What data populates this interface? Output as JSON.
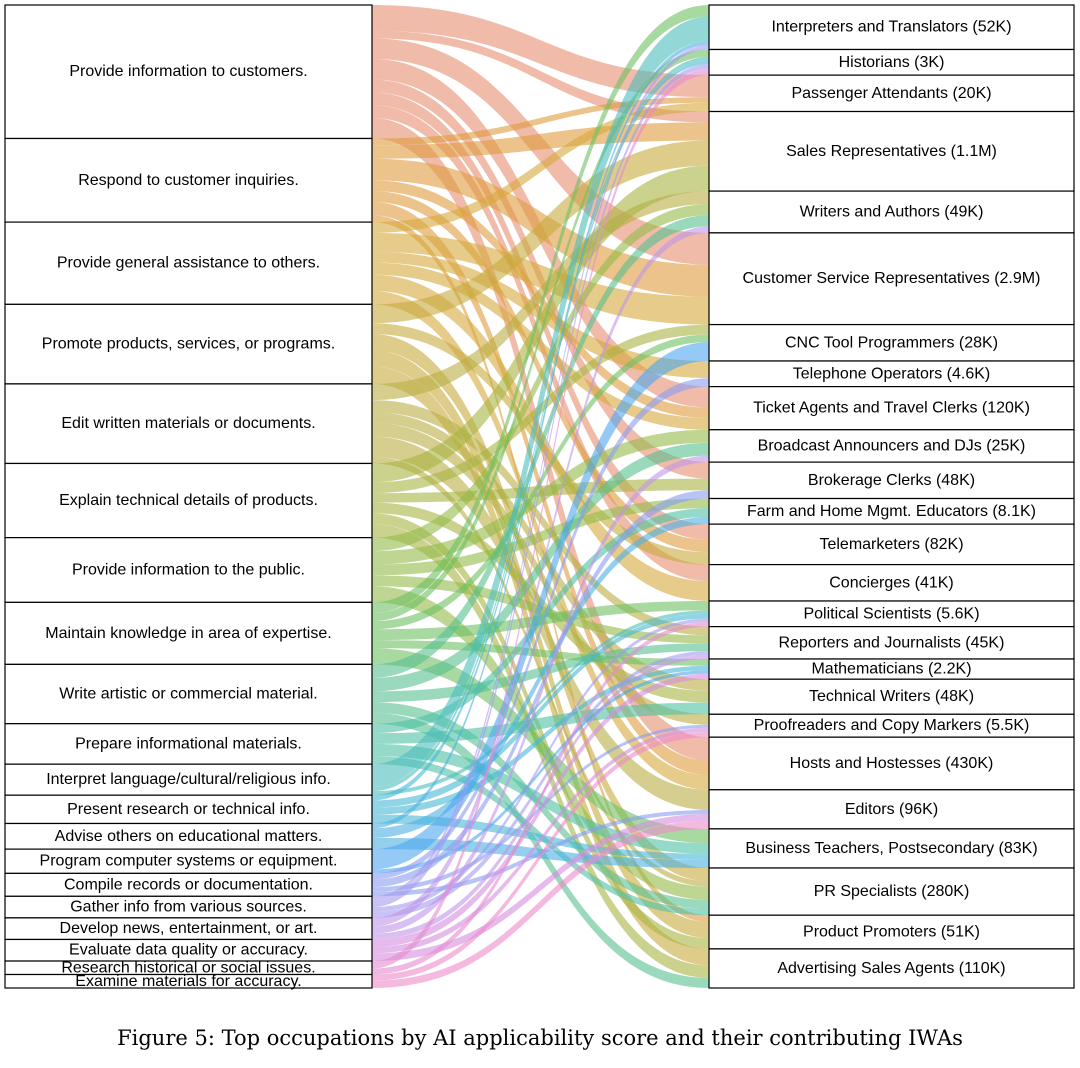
{
  "chart_data": {
    "type": "sankey",
    "caption": "Figure 5: Top occupations by AI applicability score and their contributing IWAs",
    "sources": [
      {
        "label": "Provide information to customers.",
        "color": "#e88e72",
        "weight": 9.9
      },
      {
        "label": "Respond to customer inquiries.",
        "color": "#e09b3c",
        "weight": 6.2
      },
      {
        "label": "Provide general assistance to others.",
        "color": "#d7a83c",
        "weight": 6.1
      },
      {
        "label": "Promote products, services, or programs.",
        "color": "#c8aa3e",
        "weight": 5.9
      },
      {
        "label": "Edit written materials or documents.",
        "color": "#b9ae42",
        "weight": 5.9
      },
      {
        "label": "Explain technical details of products.",
        "color": "#a9b443",
        "weight": 5.5
      },
      {
        "label": "Provide information to the public.",
        "color": "#92bb4a",
        "weight": 4.8
      },
      {
        "label": "Maintain knowledge in area of expertise.",
        "color": "#6dbf63",
        "weight": 4.6
      },
      {
        "label": "Write artistic or commercial material.",
        "color": "#56c08d",
        "weight": 4.4
      },
      {
        "label": "Prepare informational materials.",
        "color": "#4fc0a5",
        "weight": 3.0
      },
      {
        "label": "Interpret language/cultural/religious info.",
        "color": "#4cbcbd",
        "weight": 2.3
      },
      {
        "label": "Present research or technical info.",
        "color": "#48b8d3",
        "weight": 2.1
      },
      {
        "label": "Advise others on educational matters.",
        "color": "#4db0e3",
        "weight": 1.9
      },
      {
        "label": "Program computer systems or equipment.",
        "color": "#4ca6ee",
        "weight": 1.8
      },
      {
        "label": "Compile records or documentation.",
        "color": "#8b9cf0",
        "weight": 1.7
      },
      {
        "label": "Gather info from various sources.",
        "color": "#a59af0",
        "weight": 1.6
      },
      {
        "label": "Develop news, entertainment, or art.",
        "color": "#bf94ea",
        "weight": 1.6
      },
      {
        "label": "Evaluate data quality or accuracy.",
        "color": "#d68ee0",
        "weight": 1.6
      },
      {
        "label": "Research historical or social issues.",
        "color": "#e68ad0",
        "weight": 1.0
      },
      {
        "label": "Examine materials for accuracy.",
        "color": "#ef8acb",
        "weight": 1.0
      }
    ],
    "targets": [
      {
        "label": "Interpreters and Translators (52K)",
        "weight": 3.3
      },
      {
        "label": "Historians (3K)",
        "weight": 1.9
      },
      {
        "label": "Passenger Attendants (20K)",
        "weight": 2.7
      },
      {
        "label": "Sales Representatives (1.1M)",
        "weight": 5.9
      },
      {
        "label": "Writers and Authors (49K)",
        "weight": 3.1
      },
      {
        "label": "Customer Service Representatives (2.9M)",
        "weight": 6.8
      },
      {
        "label": "CNC Tool Programmers (28K)",
        "weight": 2.7
      },
      {
        "label": "Telephone Operators (4.6K)",
        "weight": 1.9
      },
      {
        "label": "Ticket Agents and Travel Clerks (120K)",
        "weight": 3.2
      },
      {
        "label": "Broadcast Announcers and DJs (25K)",
        "weight": 2.4
      },
      {
        "label": "Brokerage Clerks (48K)",
        "weight": 2.7
      },
      {
        "label": "Farm and Home Mgmt. Educators (8.1K)",
        "weight": 1.9
      },
      {
        "label": "Telemarketers (82K)",
        "weight": 3.0
      },
      {
        "label": "Concierges (41K)",
        "weight": 2.7
      },
      {
        "label": "Political Scientists (5.6K)",
        "weight": 1.9
      },
      {
        "label": "Reporters and Journalists (45K)",
        "weight": 2.4
      },
      {
        "label": "Mathematicians (2.2K)",
        "weight": 1.5
      },
      {
        "label": "Technical Writers (48K)",
        "weight": 2.6
      },
      {
        "label": "Proofreaders and Copy Markers (5.5K)",
        "weight": 1.7
      },
      {
        "label": "Hosts and Hostesses (430K)",
        "weight": 3.9
      },
      {
        "label": "Editors (96K)",
        "weight": 2.9
      },
      {
        "label": "Business Teachers, Postsecondary (83K)",
        "weight": 2.9
      },
      {
        "label": "PR Specialists (280K)",
        "weight": 3.5
      },
      {
        "label": "Product Promoters (51K)",
        "weight": 2.5
      },
      {
        "label": "Advertising Sales Agents (110K)",
        "weight": 2.9
      }
    ],
    "links": [
      {
        "source": 0,
        "target": 2,
        "value": 2.0
      },
      {
        "source": 0,
        "target": 5,
        "value": 1.6
      },
      {
        "source": 0,
        "target": 8,
        "value": 1.6
      },
      {
        "source": 0,
        "target": 10,
        "value": 1.0
      },
      {
        "source": 0,
        "target": 12,
        "value": 1.0
      },
      {
        "source": 0,
        "target": 13,
        "value": 1.0
      },
      {
        "source": 0,
        "target": 19,
        "value": 1.6
      },
      {
        "source": 0,
        "target": 3,
        "value": 0.6
      },
      {
        "source": 1,
        "target": 3,
        "value": 1.0
      },
      {
        "source": 1,
        "target": 5,
        "value": 1.6
      },
      {
        "source": 1,
        "target": 8,
        "value": 0.8
      },
      {
        "source": 1,
        "target": 12,
        "value": 0.8
      },
      {
        "source": 1,
        "target": 19,
        "value": 1.0
      },
      {
        "source": 1,
        "target": 23,
        "value": 0.5
      },
      {
        "source": 1,
        "target": 2,
        "value": 0.5
      },
      {
        "source": 2,
        "target": 2,
        "value": 0.8
      },
      {
        "source": 2,
        "target": 5,
        "value": 1.4
      },
      {
        "source": 2,
        "target": 7,
        "value": 0.8
      },
      {
        "source": 2,
        "target": 13,
        "value": 1.2
      },
      {
        "source": 2,
        "target": 19,
        "value": 1.0
      },
      {
        "source": 2,
        "target": 8,
        "value": 0.9
      },
      {
        "source": 3,
        "target": 3,
        "value": 1.4
      },
      {
        "source": 3,
        "target": 12,
        "value": 0.8
      },
      {
        "source": 3,
        "target": 22,
        "value": 1.2
      },
      {
        "source": 3,
        "target": 23,
        "value": 1.2
      },
      {
        "source": 3,
        "target": 24,
        "value": 1.3
      },
      {
        "source": 4,
        "target": 4,
        "value": 1.2
      },
      {
        "source": 4,
        "target": 15,
        "value": 0.9
      },
      {
        "source": 4,
        "target": 17,
        "value": 0.8
      },
      {
        "source": 4,
        "target": 18,
        "value": 1.0
      },
      {
        "source": 4,
        "target": 20,
        "value": 1.5
      },
      {
        "source": 4,
        "target": 22,
        "value": 0.5
      },
      {
        "source": 5,
        "target": 3,
        "value": 1.4
      },
      {
        "source": 5,
        "target": 6,
        "value": 0.8
      },
      {
        "source": 5,
        "target": 10,
        "value": 0.7
      },
      {
        "source": 5,
        "target": 17,
        "value": 0.8
      },
      {
        "source": 5,
        "target": 23,
        "value": 0.8
      },
      {
        "source": 5,
        "target": 24,
        "value": 1.0
      },
      {
        "source": 6,
        "target": 9,
        "value": 1.0
      },
      {
        "source": 6,
        "target": 15,
        "value": 0.8
      },
      {
        "source": 6,
        "target": 22,
        "value": 1.2
      },
      {
        "source": 6,
        "target": 11,
        "value": 0.8
      },
      {
        "source": 6,
        "target": 4,
        "value": 1.0
      },
      {
        "source": 7,
        "target": 1,
        "value": 0.6
      },
      {
        "source": 7,
        "target": 6,
        "value": 0.6
      },
      {
        "source": 7,
        "target": 14,
        "value": 0.8
      },
      {
        "source": 7,
        "target": 16,
        "value": 0.6
      },
      {
        "source": 7,
        "target": 21,
        "value": 1.2
      },
      {
        "source": 7,
        "target": 0,
        "value": 0.8
      },
      {
        "source": 8,
        "target": 4,
        "value": 1.0
      },
      {
        "source": 8,
        "target": 9,
        "value": 1.0
      },
      {
        "source": 8,
        "target": 22,
        "value": 0.8
      },
      {
        "source": 8,
        "target": 24,
        "value": 0.8
      },
      {
        "source": 8,
        "target": 15,
        "value": 0.8
      },
      {
        "source": 9,
        "target": 11,
        "value": 0.7
      },
      {
        "source": 9,
        "target": 17,
        "value": 0.8
      },
      {
        "source": 9,
        "target": 22,
        "value": 0.6
      },
      {
        "source": 9,
        "target": 21,
        "value": 0.9
      },
      {
        "source": 10,
        "target": 0,
        "value": 1.7
      },
      {
        "source": 10,
        "target": 1,
        "value": 0.3
      },
      {
        "source": 10,
        "target": 14,
        "value": 0.3
      },
      {
        "source": 11,
        "target": 14,
        "value": 0.4
      },
      {
        "source": 11,
        "target": 16,
        "value": 0.4
      },
      {
        "source": 11,
        "target": 21,
        "value": 0.5
      },
      {
        "source": 11,
        "target": 1,
        "value": 0.3
      },
      {
        "source": 12,
        "target": 11,
        "value": 0.6
      },
      {
        "source": 12,
        "target": 21,
        "value": 0.7
      },
      {
        "source": 12,
        "target": 0,
        "value": 0.3
      },
      {
        "source": 13,
        "target": 6,
        "value": 1.5
      },
      {
        "source": 13,
        "target": 16,
        "value": 0.3
      },
      {
        "source": 14,
        "target": 7,
        "value": 0.4
      },
      {
        "source": 14,
        "target": 10,
        "value": 0.5
      },
      {
        "source": 14,
        "target": 18,
        "value": 0.3
      },
      {
        "source": 14,
        "target": 20,
        "value": 0.3
      },
      {
        "source": 15,
        "target": 1,
        "value": 0.4
      },
      {
        "source": 15,
        "target": 15,
        "value": 0.4
      },
      {
        "source": 15,
        "target": 14,
        "value": 0.3
      },
      {
        "source": 15,
        "target": 0,
        "value": 0.3
      },
      {
        "source": 16,
        "target": 9,
        "value": 0.5
      },
      {
        "source": 16,
        "target": 4,
        "value": 0.6
      },
      {
        "source": 16,
        "target": 15,
        "value": 0.4
      },
      {
        "source": 17,
        "target": 16,
        "value": 0.5
      },
      {
        "source": 17,
        "target": 20,
        "value": 0.5
      },
      {
        "source": 17,
        "target": 18,
        "value": 0.4
      },
      {
        "source": 18,
        "target": 1,
        "value": 0.5
      },
      {
        "source": 18,
        "target": 14,
        "value": 0.4
      },
      {
        "source": 19,
        "target": 18,
        "value": 0.5
      },
      {
        "source": 19,
        "target": 20,
        "value": 0.6
      }
    ]
  }
}
